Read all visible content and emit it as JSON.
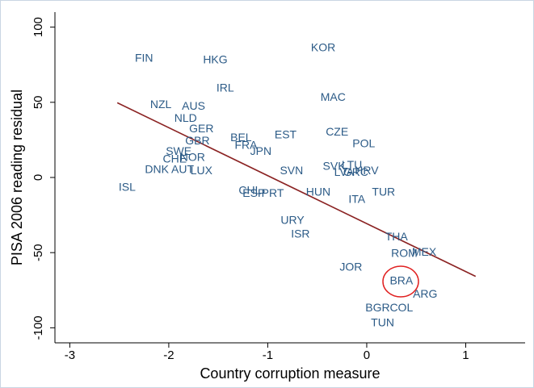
{
  "chart_data": {
    "type": "scatter",
    "x_label": "Country corruption measure",
    "y_label": "PISA 2006 reading residual",
    "xlim": [
      -3.15,
      1.6
    ],
    "ylim": [
      -110,
      110
    ],
    "xticks": [
      -3,
      -2,
      -1,
      0,
      1
    ],
    "yticks": [
      -100,
      -50,
      0,
      50,
      100
    ],
    "label_color": "#2c5b87",
    "labels": [
      "FIN",
      "HKG",
      "KOR",
      "IRL",
      "NZL",
      "AUS",
      "MAC",
      "NLD",
      "GER",
      "CZE",
      "GBR",
      "BEL",
      "EST",
      "POL",
      "FRA",
      "JPN",
      "SWE",
      "NOR",
      "CHE",
      "DNK",
      "AUT",
      "LUX",
      "ISL",
      "SVN",
      "SVK",
      "LTU",
      "LVA",
      "GRC",
      "HRV",
      "CHL",
      "ESP",
      "PRT",
      "HUN",
      "ITA",
      "TUR",
      "URY",
      "ISR",
      "THA",
      "ROM",
      "MEX",
      "JOR",
      "BRA",
      "ARG",
      "BGR",
      "COL",
      "TUN"
    ],
    "x": [
      -2.25,
      -1.53,
      -0.44,
      -1.43,
      -2.08,
      -1.75,
      -0.34,
      -1.83,
      -1.67,
      -0.3,
      -1.71,
      -1.27,
      -0.82,
      -0.03,
      -1.22,
      -1.07,
      -1.9,
      -1.76,
      -1.94,
      -2.12,
      -1.86,
      -1.67,
      -2.42,
      -0.76,
      -0.33,
      -0.15,
      -0.23,
      -0.11,
      0.0,
      -1.18,
      -1.14,
      -0.95,
      -0.49,
      -0.1,
      0.17,
      -0.75,
      -0.67,
      0.3,
      0.38,
      0.58,
      -0.16,
      0.35,
      0.59,
      0.11,
      0.35,
      0.16
    ],
    "y": [
      79,
      78,
      86,
      59,
      48,
      47,
      53,
      39,
      32,
      30,
      24,
      26,
      28,
      22,
      21,
      17,
      17,
      13,
      12,
      5,
      5,
      4,
      -7,
      4,
      7,
      8,
      3,
      3,
      4,
      -9,
      -11,
      -11,
      -10,
      -15,
      -10,
      -29,
      -38,
      -40,
      -51,
      -50,
      -60,
      -69,
      -78,
      -87,
      -87,
      -97
    ],
    "fit_line": {
      "x": [
        -2.52,
        1.1
      ],
      "y": [
        49.7,
        -65.8
      ],
      "color": "#8b2323"
    }
  }
}
